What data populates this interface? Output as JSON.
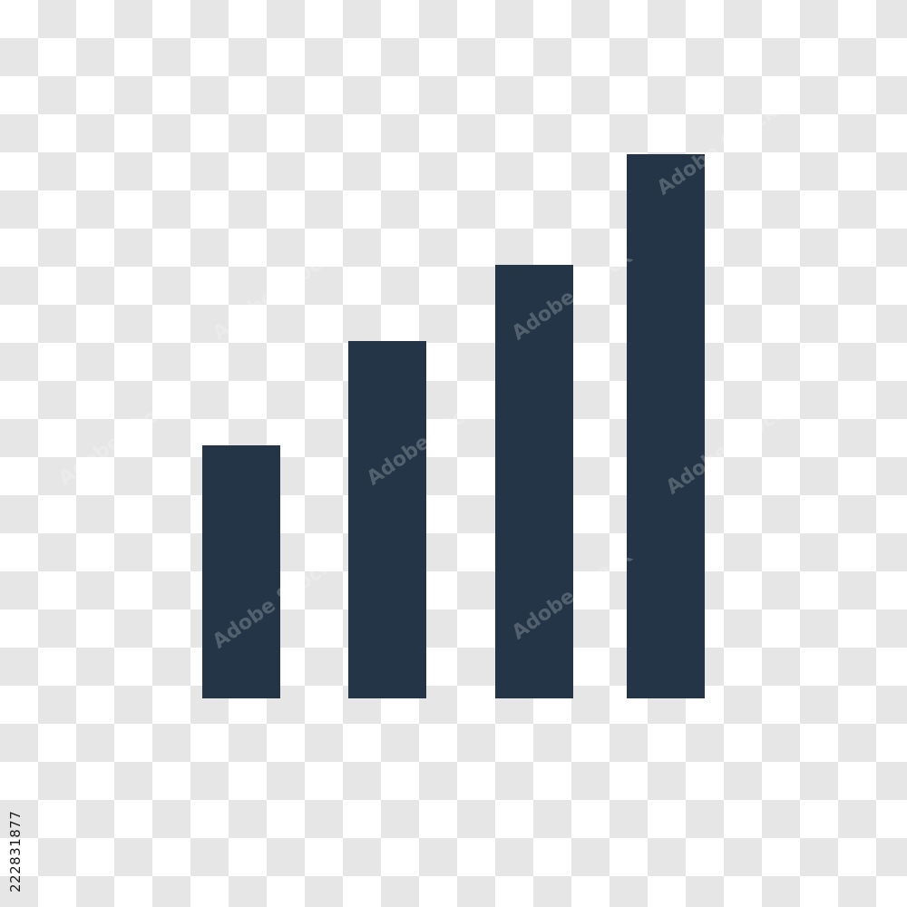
{
  "icon": {
    "name": "bar-chart-icon",
    "color": "#233546",
    "bar_levels": [
      0.35,
      0.49,
      0.59,
      0.75
    ]
  },
  "background": {
    "pattern": "transparency-checkerboard",
    "colors": [
      "#ffffff",
      "#e6e6e6"
    ]
  },
  "watermark": {
    "text": "Adobe Stock"
  },
  "stock_id": "222831877"
}
